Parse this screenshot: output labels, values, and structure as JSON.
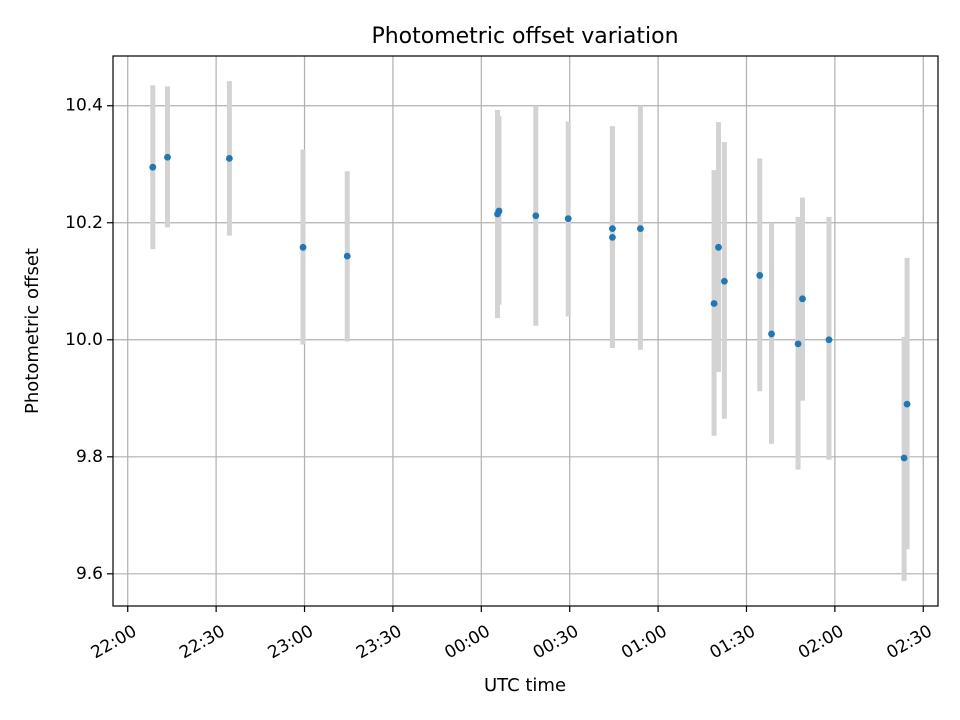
{
  "chart_data": {
    "type": "scatter",
    "title": "Photometric offset variation",
    "xlabel": "UTC time",
    "ylabel": "Photometric offset",
    "x_axis": {
      "type": "time",
      "start": "2023-01-01T21:55:00",
      "end": "2023-01-02T02:35:00",
      "ticks": [
        {
          "time": "2023-01-01T22:00:00",
          "label": "22:00"
        },
        {
          "time": "2023-01-01T22:30:00",
          "label": "22:30"
        },
        {
          "time": "2023-01-01T23:00:00",
          "label": "23:00"
        },
        {
          "time": "2023-01-01T23:30:00",
          "label": "23:30"
        },
        {
          "time": "2023-01-02T00:00:00",
          "label": "00:00"
        },
        {
          "time": "2023-01-02T00:30:00",
          "label": "00:30"
        },
        {
          "time": "2023-01-02T01:00:00",
          "label": "01:00"
        },
        {
          "time": "2023-01-02T01:30:00",
          "label": "01:30"
        },
        {
          "time": "2023-01-02T02:00:00",
          "label": "02:00"
        },
        {
          "time": "2023-01-02T02:30:00",
          "label": "02:30"
        }
      ]
    },
    "y_axis": {
      "ylim": [
        9.545,
        10.485
      ],
      "ticks": [
        {
          "value": 9.6,
          "label": "9.6"
        },
        {
          "value": 9.8,
          "label": "9.8"
        },
        {
          "value": 10.0,
          "label": "10.0"
        },
        {
          "value": 10.2,
          "label": "10.2"
        },
        {
          "value": 10.4,
          "label": "10.4"
        }
      ]
    },
    "grid": true,
    "colors": {
      "point": "#1f77b4",
      "errorbar": "#d3d3d3",
      "grid": "#b0b0b0"
    },
    "points": [
      {
        "time": "2023-01-01T22:08:30",
        "y": 10.295,
        "ylo": 10.155,
        "yhi": 10.435
      },
      {
        "time": "2023-01-01T22:13:30",
        "y": 10.312,
        "ylo": 10.192,
        "yhi": 10.433
      },
      {
        "time": "2023-01-01T22:34:30",
        "y": 10.31,
        "ylo": 10.178,
        "yhi": 10.442
      },
      {
        "time": "2023-01-01T22:59:30",
        "y": 10.158,
        "ylo": 9.992,
        "yhi": 10.325
      },
      {
        "time": "2023-01-01T23:14:30",
        "y": 10.143,
        "ylo": 9.997,
        "yhi": 10.288
      },
      {
        "time": "2023-01-02T00:05:30",
        "y": 10.215,
        "ylo": 10.037,
        "yhi": 10.393
      },
      {
        "time": "2023-01-02T00:06:00",
        "y": 10.22,
        "ylo": 10.06,
        "yhi": 10.382
      },
      {
        "time": "2023-01-02T00:18:30",
        "y": 10.212,
        "ylo": 10.024,
        "yhi": 10.4
      },
      {
        "time": "2023-01-02T00:29:30",
        "y": 10.207,
        "ylo": 10.04,
        "yhi": 10.373
      },
      {
        "time": "2023-01-02T00:44:30",
        "y": 10.19,
        "ylo": 10.015,
        "yhi": 10.365
      },
      {
        "time": "2023-01-02T00:44:30",
        "y": 10.175,
        "ylo": 9.986,
        "yhi": 10.364
      },
      {
        "time": "2023-01-02T00:54:00",
        "y": 10.19,
        "ylo": 9.983,
        "yhi": 10.4
      },
      {
        "time": "2023-01-02T01:19:00",
        "y": 10.062,
        "ylo": 9.836,
        "yhi": 10.29
      },
      {
        "time": "2023-01-02T01:20:30",
        "y": 10.158,
        "ylo": 9.945,
        "yhi": 10.372
      },
      {
        "time": "2023-01-02T01:22:30",
        "y": 10.1,
        "ylo": 9.865,
        "yhi": 10.338
      },
      {
        "time": "2023-01-02T01:34:30",
        "y": 10.11,
        "ylo": 9.912,
        "yhi": 10.31
      },
      {
        "time": "2023-01-02T01:38:30",
        "y": 10.01,
        "ylo": 9.822,
        "yhi": 10.2
      },
      {
        "time": "2023-01-02T01:47:30",
        "y": 9.993,
        "ylo": 9.778,
        "yhi": 10.21
      },
      {
        "time": "2023-01-02T01:49:00",
        "y": 10.07,
        "ylo": 9.896,
        "yhi": 10.243
      },
      {
        "time": "2023-01-02T01:58:00",
        "y": 10.0,
        "ylo": 9.795,
        "yhi": 10.21
      },
      {
        "time": "2023-01-02T02:23:30",
        "y": 9.798,
        "ylo": 9.588,
        "yhi": 10.005
      },
      {
        "time": "2023-01-02T02:24:30",
        "y": 9.89,
        "ylo": 9.642,
        "yhi": 10.14
      }
    ]
  }
}
